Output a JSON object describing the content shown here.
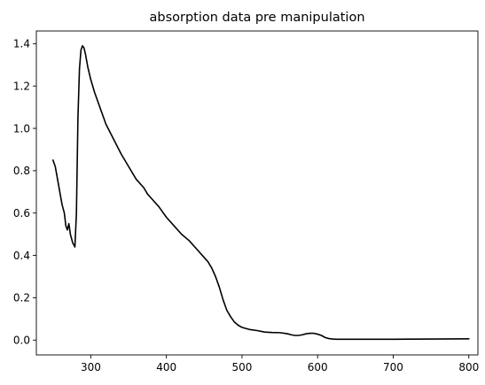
{
  "chart_data": {
    "type": "line",
    "title": "absorption data pre manipulation",
    "xlabel": "",
    "ylabel": "",
    "xlim": [
      228,
      812
    ],
    "ylim": [
      -0.07,
      1.46
    ],
    "x_ticks": [
      300,
      400,
      500,
      600,
      700,
      800
    ],
    "y_ticks": [
      0.0,
      0.2,
      0.4,
      0.6,
      0.8,
      1.0,
      1.2,
      1.4
    ],
    "x_tick_labels": [
      "300",
      "400",
      "500",
      "600",
      "700",
      "800"
    ],
    "y_tick_labels": [
      "0.0",
      "0.2",
      "0.4",
      "0.6",
      "0.8",
      "1.0",
      "1.2",
      "1.4"
    ],
    "grid": false,
    "line_color": "#000000",
    "series": [
      {
        "x": [
          250,
          253,
          256,
          259,
          262,
          265,
          267,
          269,
          271,
          273,
          276,
          279,
          281,
          283,
          285,
          287,
          289,
          291,
          293,
          296,
          300,
          305,
          310,
          315,
          320,
          330,
          340,
          350,
          360,
          370,
          375,
          380,
          390,
          400,
          410,
          420,
          430,
          440,
          450,
          455,
          460,
          465,
          470,
          475,
          480,
          485,
          490,
          495,
          500,
          505,
          510,
          520,
          530,
          540,
          550,
          560,
          565,
          570,
          575,
          580,
          585,
          590,
          595,
          600,
          605,
          610,
          615,
          620,
          625,
          630,
          650,
          700,
          750,
          800
        ],
        "y": [
          0.85,
          0.82,
          0.76,
          0.7,
          0.64,
          0.6,
          0.54,
          0.52,
          0.55,
          0.5,
          0.46,
          0.44,
          0.6,
          1.05,
          1.28,
          1.37,
          1.39,
          1.38,
          1.35,
          1.29,
          1.23,
          1.17,
          1.12,
          1.07,
          1.02,
          0.95,
          0.88,
          0.82,
          0.76,
          0.72,
          0.69,
          0.67,
          0.63,
          0.58,
          0.54,
          0.5,
          0.47,
          0.43,
          0.39,
          0.37,
          0.34,
          0.3,
          0.25,
          0.19,
          0.14,
          0.11,
          0.085,
          0.07,
          0.06,
          0.055,
          0.05,
          0.045,
          0.038,
          0.036,
          0.035,
          0.03,
          0.025,
          0.022,
          0.022,
          0.025,
          0.03,
          0.032,
          0.032,
          0.028,
          0.022,
          0.012,
          0.007,
          0.005,
          0.004,
          0.004,
          0.004,
          0.004,
          0.005,
          0.006
        ]
      }
    ]
  }
}
